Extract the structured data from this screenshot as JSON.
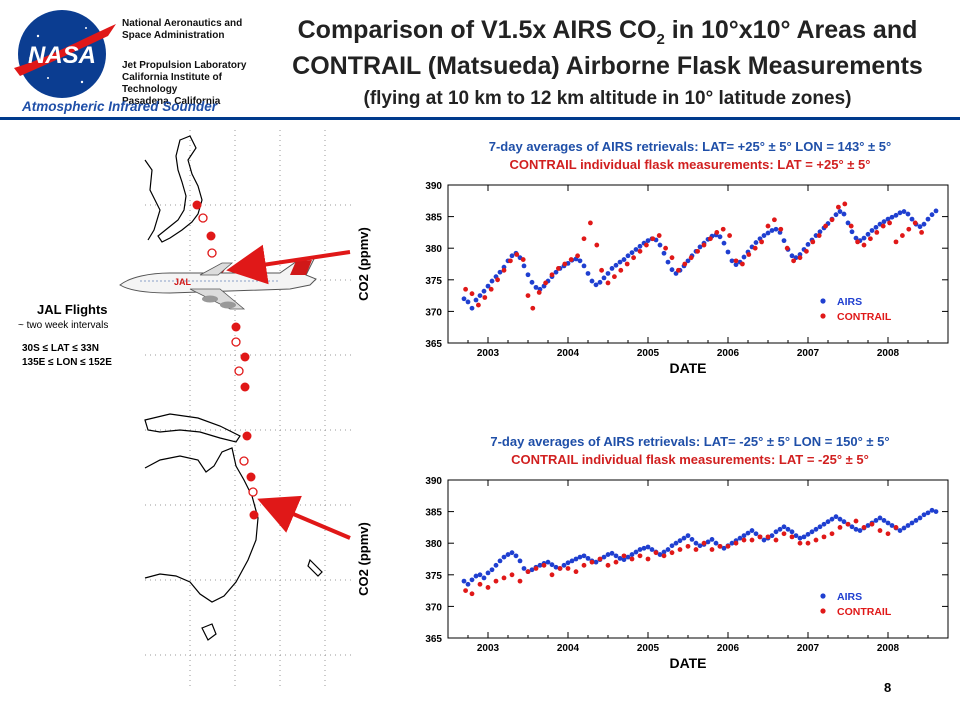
{
  "header": {
    "org_line1": "National Aeronautics and",
    "org_line2": "Space Administration",
    "jpl_line1": "Jet Propulsion Laboratory",
    "jpl_line2": "California Institute of",
    "jpl_line3": "Technology",
    "jpl_line4": "Pasadena, California",
    "instrument": "Atmospheric Infrared Sounder",
    "logo_text": "NASA"
  },
  "title": {
    "line1_prefix": "Comparison of V1.5x AIRS CO",
    "line1_sub": "2",
    "line1_suffix": " in 10°x10° Areas and",
    "line2": "CONTRAIL (Matsueda) Airborne Flask Measurements",
    "line3": "(flying at 10 km to 12 km altitude in 10° latitude zones)"
  },
  "map": {
    "label_title": "JAL Flights",
    "label_interval": "~ two week intervals",
    "lat_range": "30S ≤ LAT ≤ 33N",
    "lon_range": "135E ≤ LON ≤ 152E",
    "plane_text": "JAL"
  },
  "colors": {
    "airs": "#1f3fd0",
    "contrail": "#e01818",
    "brand": "#003a8c"
  },
  "page_number": "8",
  "chart_data": [
    {
      "type": "scatter",
      "title_line1": "7-day averages of AIRS retrievals:   LAT= +25° ± 5°  LON = 143° ± 5°",
      "title_line2": "CONTRAIL individual flask measurements:  LAT = +25° ± 5°",
      "xlabel": "DATE",
      "ylabel": "CO2 (ppmv)",
      "xlim": [
        2002.5,
        2008.75
      ],
      "ylim": [
        365,
        390
      ],
      "x_ticks": [
        2003,
        2004,
        2005,
        2006,
        2007,
        2008
      ],
      "y_ticks": [
        365,
        370,
        375,
        380,
        385,
        390
      ],
      "legend": "bottom-right",
      "series": [
        {
          "name": "AIRS",
          "color": "#1f3fd0",
          "x": [
            2002.7,
            2002.75,
            2002.8,
            2002.85,
            2002.9,
            2002.95,
            2003.0,
            2003.05,
            2003.1,
            2003.15,
            2003.2,
            2003.25,
            2003.3,
            2003.35,
            2003.4,
            2003.45,
            2003.5,
            2003.55,
            2003.6,
            2003.65,
            2003.7,
            2003.75,
            2003.8,
            2003.85,
            2003.9,
            2003.95,
            2004.0,
            2004.05,
            2004.1,
            2004.15,
            2004.2,
            2004.25,
            2004.3,
            2004.35,
            2004.4,
            2004.45,
            2004.5,
            2004.55,
            2004.6,
            2004.65,
            2004.7,
            2004.75,
            2004.8,
            2004.85,
            2004.9,
            2004.95,
            2005.0,
            2005.05,
            2005.1,
            2005.15,
            2005.2,
            2005.25,
            2005.3,
            2005.35,
            2005.4,
            2005.45,
            2005.5,
            2005.55,
            2005.6,
            2005.65,
            2005.7,
            2005.75,
            2005.8,
            2005.85,
            2005.9,
            2005.95,
            2006.0,
            2006.05,
            2006.1,
            2006.15,
            2006.2,
            2006.25,
            2006.3,
            2006.35,
            2006.4,
            2006.45,
            2006.5,
            2006.55,
            2006.6,
            2006.65,
            2006.7,
            2006.75,
            2006.8,
            2006.85,
            2006.9,
            2006.95,
            2007.0,
            2007.05,
            2007.1,
            2007.15,
            2007.2,
            2007.25,
            2007.3,
            2007.35,
            2007.4,
            2007.45,
            2007.5,
            2007.55,
            2007.6,
            2007.65,
            2007.7,
            2007.75,
            2007.8,
            2007.85,
            2007.9,
            2007.95,
            2008.0,
            2008.05,
            2008.1,
            2008.15,
            2008.2,
            2008.25,
            2008.3,
            2008.35,
            2008.4,
            2008.45,
            2008.5,
            2008.55,
            2008.6
          ],
          "y": [
            372.0,
            371.5,
            370.5,
            371.8,
            372.5,
            373.2,
            374.0,
            374.8,
            375.5,
            376.2,
            377.0,
            378.0,
            378.8,
            379.2,
            378.5,
            377.2,
            375.8,
            374.6,
            373.8,
            373.5,
            374.0,
            374.8,
            375.5,
            376.2,
            376.8,
            377.2,
            377.6,
            378.1,
            378.3,
            378.0,
            377.2,
            376.0,
            374.8,
            374.2,
            374.6,
            375.3,
            376.0,
            376.8,
            377.3,
            377.8,
            378.2,
            378.8,
            379.3,
            379.8,
            380.3,
            380.8,
            381.2,
            381.5,
            381.3,
            380.5,
            379.2,
            377.8,
            376.6,
            376.0,
            376.5,
            377.2,
            378.0,
            378.8,
            379.5,
            380.2,
            380.8,
            381.4,
            381.9,
            382.1,
            381.8,
            380.8,
            379.4,
            378.0,
            377.4,
            377.8,
            378.6,
            379.4,
            380.2,
            380.9,
            381.5,
            382.0,
            382.4,
            382.8,
            383.0,
            382.5,
            381.2,
            379.8,
            378.8,
            378.5,
            379.0,
            379.8,
            380.6,
            381.3,
            382.0,
            382.6,
            383.2,
            383.9,
            384.6,
            385.3,
            385.8,
            385.4,
            384.0,
            382.6,
            381.6,
            381.2,
            381.6,
            382.2,
            382.8,
            383.3,
            383.8,
            384.2,
            384.6,
            384.9,
            385.2,
            385.6,
            385.8,
            385.4,
            384.6,
            383.8,
            383.4,
            383.8,
            384.6,
            385.3,
            385.9
          ]
        },
        {
          "name": "CONTRAIL",
          "color": "#e01818",
          "x": [
            2002.72,
            2002.8,
            2002.88,
            2002.96,
            2003.04,
            2003.12,
            2003.2,
            2003.28,
            2003.36,
            2003.44,
            2003.5,
            2003.56,
            2003.64,
            2003.72,
            2003.8,
            2003.88,
            2003.96,
            2004.04,
            2004.12,
            2004.2,
            2004.28,
            2004.36,
            2004.42,
            2004.5,
            2004.58,
            2004.66,
            2004.74,
            2004.82,
            2004.9,
            2004.98,
            2005.06,
            2005.14,
            2005.22,
            2005.3,
            2005.38,
            2005.46,
            2005.54,
            2005.62,
            2005.7,
            2005.78,
            2005.86,
            2005.94,
            2006.02,
            2006.1,
            2006.18,
            2006.26,
            2006.34,
            2006.42,
            2006.5,
            2006.58,
            2006.66,
            2006.74,
            2006.82,
            2006.9,
            2006.98,
            2007.06,
            2007.14,
            2007.22,
            2007.3,
            2007.38,
            2007.46,
            2007.54,
            2007.62,
            2007.7,
            2007.78,
            2007.86,
            2007.94,
            2008.02,
            2008.1,
            2008.18,
            2008.26,
            2008.34,
            2008.42
          ],
          "y": [
            373.5,
            372.8,
            371.0,
            372.2,
            373.5,
            375.0,
            376.5,
            378.0,
            379.0,
            378.2,
            372.5,
            370.5,
            373.0,
            374.5,
            375.8,
            376.8,
            377.5,
            378.2,
            378.8,
            381.5,
            384.0,
            380.5,
            376.5,
            374.5,
            375.5,
            376.5,
            377.5,
            378.5,
            379.5,
            380.5,
            381.5,
            382.0,
            380.0,
            378.5,
            376.5,
            377.5,
            378.5,
            379.5,
            380.5,
            381.5,
            382.5,
            383.0,
            382.0,
            378.0,
            377.5,
            379.0,
            380.0,
            381.0,
            383.5,
            384.5,
            383.0,
            380.0,
            378.0,
            378.5,
            379.5,
            381.0,
            382.0,
            383.5,
            384.5,
            386.5,
            387.0,
            383.5,
            381.0,
            380.5,
            381.5,
            382.5,
            383.5,
            384.0,
            381.0,
            382.0,
            383.0,
            384.0,
            382.5
          ]
        }
      ]
    },
    {
      "type": "scatter",
      "title_line1": "7-day averages of AIRS retrievals:   LAT= -25° ± 5°  LON = 150° ± 5°",
      "title_line2": "CONTRAIL individual flask measurements:  LAT = -25° ± 5°",
      "xlabel": "DATE",
      "ylabel": "CO2 (ppmv)",
      "xlim": [
        2002.5,
        2008.75
      ],
      "ylim": [
        365,
        390
      ],
      "x_ticks": [
        2003,
        2004,
        2005,
        2006,
        2007,
        2008
      ],
      "y_ticks": [
        365,
        370,
        375,
        380,
        385,
        390
      ],
      "legend": "bottom-right",
      "series": [
        {
          "name": "AIRS",
          "color": "#1f3fd0",
          "x": [
            2002.7,
            2002.75,
            2002.8,
            2002.85,
            2002.9,
            2002.95,
            2003.0,
            2003.05,
            2003.1,
            2003.15,
            2003.2,
            2003.25,
            2003.3,
            2003.35,
            2003.4,
            2003.45,
            2003.5,
            2003.55,
            2003.6,
            2003.65,
            2003.7,
            2003.75,
            2003.8,
            2003.85,
            2003.9,
            2003.95,
            2004.0,
            2004.05,
            2004.1,
            2004.15,
            2004.2,
            2004.25,
            2004.3,
            2004.35,
            2004.4,
            2004.45,
            2004.5,
            2004.55,
            2004.6,
            2004.65,
            2004.7,
            2004.75,
            2004.8,
            2004.85,
            2004.9,
            2004.95,
            2005.0,
            2005.05,
            2005.1,
            2005.15,
            2005.2,
            2005.25,
            2005.3,
            2005.35,
            2005.4,
            2005.45,
            2005.5,
            2005.55,
            2005.6,
            2005.65,
            2005.7,
            2005.75,
            2005.8,
            2005.85,
            2005.9,
            2005.95,
            2006.0,
            2006.05,
            2006.1,
            2006.15,
            2006.2,
            2006.25,
            2006.3,
            2006.35,
            2006.4,
            2006.45,
            2006.5,
            2006.55,
            2006.6,
            2006.65,
            2006.7,
            2006.75,
            2006.8,
            2006.85,
            2006.9,
            2006.95,
            2007.0,
            2007.05,
            2007.1,
            2007.15,
            2007.2,
            2007.25,
            2007.3,
            2007.35,
            2007.4,
            2007.45,
            2007.5,
            2007.55,
            2007.6,
            2007.65,
            2007.7,
            2007.75,
            2007.8,
            2007.85,
            2007.9,
            2007.95,
            2008.0,
            2008.05,
            2008.1,
            2008.15,
            2008.2,
            2008.25,
            2008.3,
            2008.35,
            2008.4,
            2008.45,
            2008.5,
            2008.55,
            2008.6
          ],
          "y": [
            374.0,
            373.5,
            374.2,
            374.8,
            375.0,
            374.5,
            375.3,
            375.8,
            376.5,
            377.2,
            377.8,
            378.2,
            378.5,
            378.0,
            377.2,
            376.0,
            375.5,
            375.8,
            376.2,
            376.5,
            376.8,
            377.0,
            376.6,
            376.2,
            376.0,
            376.5,
            376.9,
            377.2,
            377.5,
            377.8,
            378.0,
            377.6,
            377.2,
            377.0,
            377.4,
            377.8,
            378.2,
            378.4,
            378.0,
            377.6,
            377.4,
            377.8,
            378.2,
            378.6,
            379.0,
            379.2,
            379.4,
            379.0,
            378.6,
            378.2,
            378.6,
            379.0,
            379.6,
            380.0,
            380.4,
            380.8,
            381.2,
            380.6,
            380.0,
            379.6,
            379.8,
            380.2,
            380.6,
            380.0,
            379.5,
            379.2,
            379.6,
            380.0,
            380.4,
            380.8,
            381.2,
            381.6,
            382.0,
            381.5,
            381.0,
            380.5,
            380.8,
            381.2,
            381.8,
            382.2,
            382.6,
            382.2,
            381.8,
            381.2,
            380.8,
            381.0,
            381.4,
            381.8,
            382.2,
            382.6,
            383.0,
            383.4,
            383.8,
            384.2,
            383.8,
            383.4,
            383.0,
            382.6,
            382.2,
            382.0,
            382.4,
            382.8,
            383.2,
            383.6,
            384.0,
            383.6,
            383.2,
            382.8,
            382.4,
            382.0,
            382.4,
            382.8,
            383.2,
            383.6,
            384.0,
            384.5,
            384.8,
            385.2,
            385.0
          ]
        },
        {
          "name": "CONTRAIL",
          "color": "#e01818",
          "x": [
            2002.72,
            2002.8,
            2002.9,
            2003.0,
            2003.1,
            2003.2,
            2003.3,
            2003.4,
            2003.5,
            2003.6,
            2003.7,
            2003.8,
            2003.9,
            2004.0,
            2004.1,
            2004.2,
            2004.3,
            2004.4,
            2004.5,
            2004.6,
            2004.7,
            2004.8,
            2004.9,
            2005.0,
            2005.1,
            2005.2,
            2005.3,
            2005.4,
            2005.5,
            2005.6,
            2005.7,
            2005.8,
            2005.9,
            2006.0,
            2006.1,
            2006.2,
            2006.3,
            2006.4,
            2006.5,
            2006.6,
            2006.7,
            2006.8,
            2006.9,
            2007.0,
            2007.1,
            2007.2,
            2007.3,
            2007.4,
            2007.5,
            2007.6,
            2007.7,
            2007.8,
            2007.9,
            2008.0,
            2008.1
          ],
          "y": [
            372.5,
            372.0,
            373.5,
            373.0,
            374.0,
            374.5,
            375.0,
            374.0,
            375.5,
            376.0,
            376.5,
            375.0,
            376.0,
            376.0,
            375.5,
            376.5,
            377.0,
            377.5,
            376.5,
            377.0,
            378.0,
            377.5,
            378.0,
            377.5,
            378.5,
            378.0,
            378.5,
            379.0,
            379.5,
            379.0,
            380.0,
            379.0,
            379.5,
            379.5,
            380.0,
            380.5,
            380.5,
            381.0,
            381.0,
            380.5,
            381.5,
            381.0,
            380.0,
            380.0,
            380.5,
            381.0,
            381.5,
            382.5,
            383.0,
            383.5,
            382.5,
            383.0,
            382.0,
            381.5,
            382.5
          ]
        }
      ]
    }
  ]
}
